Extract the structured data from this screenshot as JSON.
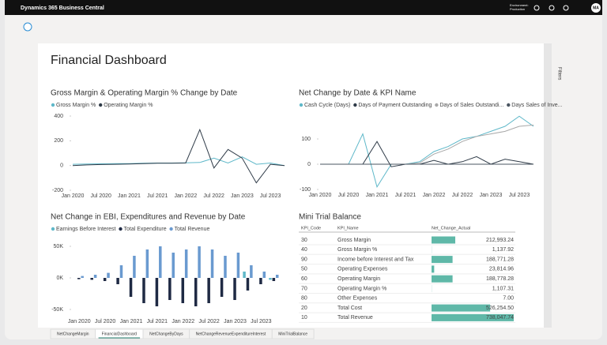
{
  "app": {
    "title": "Dynamics 365 Business Central",
    "environment": "Environment:",
    "environment_name": "Production",
    "user_initials": "MA"
  },
  "page": {
    "title": "Financial Dashboard",
    "filters": "Filters",
    "tabs": [
      "NetChangeMargin",
      "FinancialDashboard",
      "NetChangeByDays",
      "NetChangeRevenueExpenditureInterest",
      "MiniTrialBalance"
    ],
    "active_tab": 1
  },
  "chart_data": [
    {
      "type": "line",
      "title": "Gross Margin & Operating Margin % Change by Date",
      "legend": "top",
      "categories": [
        "Jan 2020",
        null,
        "Jul 2020",
        null,
        "Jan 2021",
        null,
        "Jul 2021",
        null,
        "Jan 2022",
        null,
        "Jul 2022",
        null,
        "Jan 2023",
        null,
        "Jul 2023",
        null
      ],
      "series": [
        {
          "name": "Gross Margin %",
          "color": "#5fb8c9",
          "values": [
            10,
            12,
            14,
            15,
            16,
            18,
            20,
            20,
            22,
            25,
            60,
            20,
            70,
            10,
            20,
            0
          ]
        },
        {
          "name": "Operating Margin %",
          "color": "#2f3b48",
          "values": [
            0,
            5,
            8,
            10,
            12,
            15,
            18,
            18,
            20,
            290,
            -20,
            130,
            60,
            -140,
            10,
            0
          ]
        }
      ],
      "ylim": [
        -200,
        400
      ],
      "yticks": [
        -200,
        0,
        200,
        400
      ],
      "grid": false
    },
    {
      "type": "line",
      "title": "Net Change by Date & KPI Name",
      "legend": "top",
      "categories": [
        "Jan 2020",
        null,
        "Jul 2020",
        null,
        "Jan 2021",
        null,
        "Jul 2021",
        null,
        "Jan 2022",
        null,
        "Jul 2022",
        null,
        "Jan 2023",
        null,
        "Jul 2023",
        null
      ],
      "series": [
        {
          "name": "Cash Cycle (Days)",
          "color": "#5fb8c9",
          "values": [
            0,
            0,
            0,
            120,
            -90,
            0,
            0,
            10,
            50,
            70,
            100,
            110,
            130,
            150,
            190,
            150
          ]
        },
        {
          "name": "Days of Payment Outstanding",
          "color": "#2f3b48",
          "values": [
            0,
            0,
            0,
            0,
            90,
            -10,
            0,
            0,
            15,
            0,
            10,
            30,
            0,
            20,
            10,
            0
          ]
        },
        {
          "name": "Days of Sales Outstandi...",
          "color": "#a8a8a8",
          "values": [
            0,
            0,
            0,
            0,
            0,
            0,
            0,
            5,
            40,
            60,
            90,
            110,
            120,
            130,
            150,
            155
          ]
        },
        {
          "name": "Days Sales of Inve...",
          "color": "#4a5561",
          "values": [
            0,
            0,
            0,
            0,
            0,
            0,
            0,
            0,
            0,
            0,
            0,
            0,
            0,
            0,
            0,
            0
          ]
        }
      ],
      "ylim": [
        -100,
        200
      ],
      "yticks": [
        -100,
        0,
        100
      ],
      "grid": false
    },
    {
      "type": "bar",
      "title": "Net Change in EBI, Expenditures and Revenue by Date",
      "legend": "top",
      "categories": [
        "Jan 2020",
        null,
        "Jul 2020",
        null,
        "Jan 2021",
        null,
        "Jul 2021",
        null,
        "Jan 2022",
        null,
        "Jul 2022",
        null,
        "Jan 2023",
        null,
        "Jul 2023",
        null
      ],
      "series": [
        {
          "name": "Earnings Before Interest",
          "color": "#5fb8c9",
          "values": [
            0,
            0,
            0,
            0,
            0,
            0,
            0,
            0,
            0,
            0,
            0,
            0,
            0,
            10000,
            0,
            -3000
          ]
        },
        {
          "name": "Total Expenditure",
          "color": "#1f2a44",
          "values": [
            -2000,
            -3000,
            -5000,
            -10000,
            -30000,
            -40000,
            -45000,
            -35000,
            -40000,
            -45000,
            -40000,
            -30000,
            -35000,
            -20000,
            -10000,
            -5000
          ]
        },
        {
          "name": "Total Revenue",
          "color": "#6a9ad0",
          "values": [
            3000,
            5000,
            8000,
            20000,
            35000,
            45000,
            50000,
            40000,
            45000,
            50000,
            45000,
            35000,
            40000,
            20000,
            10000,
            5000
          ]
        }
      ],
      "ylim": [
        -60000,
        60000
      ],
      "yticks": [
        {
          "value": -50000,
          "label": "-50K"
        },
        {
          "value": 0,
          "label": "0K"
        },
        {
          "value": 50000,
          "label": "50K"
        }
      ],
      "grid": false
    }
  ],
  "table": {
    "title": "Mini Trial Balance",
    "bar_color": "#5fb8a8",
    "columns": [
      "KPI_Code",
      "KPI_Name",
      "Net_Change_Actual"
    ],
    "rows": [
      {
        "code": "30",
        "name": "Gross Margin",
        "value": 212993.24,
        "value_label": "212,993.24"
      },
      {
        "code": "40",
        "name": "Gross Margin %",
        "value": 1137.92,
        "value_label": "1,137.92"
      },
      {
        "code": "90",
        "name": "Income before Interest and Tax",
        "value": 188771.28,
        "value_label": "188,771.28"
      },
      {
        "code": "50",
        "name": "Operating Expenses",
        "value": 23814.96,
        "value_label": "23,814.96"
      },
      {
        "code": "60",
        "name": "Operating Margin",
        "value": 188778.28,
        "value_label": "188,778.28"
      },
      {
        "code": "70",
        "name": "Operating Margin %",
        "value": 1107.31,
        "value_label": "1,107.31"
      },
      {
        "code": "80",
        "name": "Other Expenses",
        "value": 7.0,
        "value_label": "7.00"
      },
      {
        "code": "20",
        "name": "Total Cost",
        "value": 526254.5,
        "value_label": "526,254.50"
      },
      {
        "code": "10",
        "name": "Total Revenue",
        "value": 738047.74,
        "value_label": "738,047.74"
      }
    ]
  }
}
